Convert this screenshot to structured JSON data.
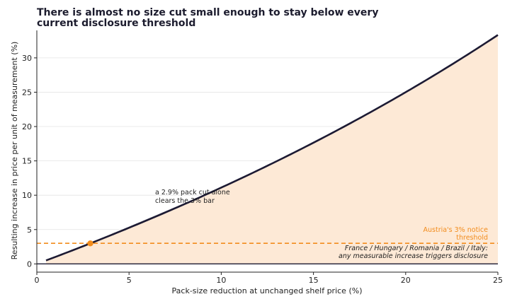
{
  "chart_data": {
    "type": "area",
    "title_lines": [
      "There is almost no size cut small enough to stay below every",
      "current disclosure threshold"
    ],
    "xlabel": "Pack-size reduction at unchanged shelf price (%)",
    "ylabel": "Resulting increase in price per unit of measurement (%)",
    "xlim": [
      0,
      25
    ],
    "ylim": [
      -1.2,
      34
    ],
    "xticks": [
      0,
      5,
      10,
      15,
      20,
      25
    ],
    "yticks": [
      0,
      5,
      10,
      15,
      20,
      25,
      30
    ],
    "grid": "horizontal",
    "curve": {
      "x_start": 0.5,
      "x_end": 25,
      "formula": "100 * x / (100 - x)",
      "x": [
        0.5,
        2.9,
        5,
        10,
        15,
        20,
        25
      ],
      "y": [
        0.5,
        2.99,
        5.26,
        11.11,
        17.65,
        25.0,
        33.33
      ]
    },
    "threshold": {
      "y": 3,
      "label_lines": [
        "Austria's 3% notice",
        "threshold"
      ]
    },
    "zero_line_label_lines": [
      "France / Hungary / Romania / Brazil / Italy:",
      "any measurable increase triggers disclosure"
    ],
    "marker": {
      "x": 2.9,
      "y": 2.99,
      "label_lines": [
        "a 2.9% pack cut alone",
        "clears the 3% bar"
      ]
    },
    "colors": {
      "line": "#1c1a33",
      "fill": "#fde9d6",
      "threshold": "#f28c1c",
      "annotation": "#222222",
      "grid": "#e4e4e4"
    }
  }
}
